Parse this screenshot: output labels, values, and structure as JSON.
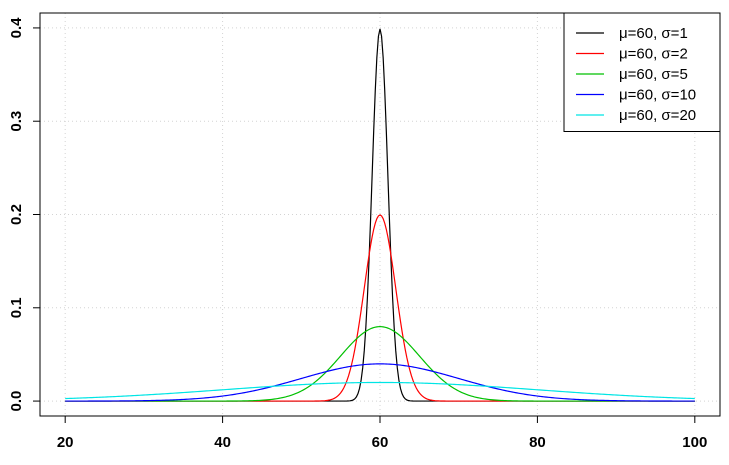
{
  "chart_data": {
    "type": "line",
    "title": "",
    "xlabel": "",
    "ylabel": "",
    "xlim": [
      20,
      100
    ],
    "ylim": [
      0,
      0.4
    ],
    "grid": true,
    "legend_position": "top-right",
    "x_ticks": [
      "20",
      "40",
      "60",
      "80",
      "100"
    ],
    "y_ticks": [
      "0.0",
      "0.1",
      "0.2",
      "0.3",
      "0.4"
    ],
    "series": [
      {
        "name": "μ=60, σ=1",
        "mu": 60,
        "sigma": 1,
        "color": "#000000",
        "x": [
          57,
          58,
          59,
          60,
          61,
          62,
          63
        ],
        "y": [
          0.0044,
          0.054,
          0.242,
          0.399,
          0.242,
          0.054,
          0.0044
        ]
      },
      {
        "name": "μ=60, σ=2",
        "mu": 60,
        "sigma": 2,
        "color": "#ff0000",
        "x": [
          54,
          56,
          58,
          60,
          62,
          64,
          66
        ],
        "y": [
          0.0022,
          0.027,
          0.121,
          0.199,
          0.121,
          0.027,
          0.0022
        ]
      },
      {
        "name": "μ=60, σ=5",
        "mu": 60,
        "sigma": 5,
        "color": "#00c000",
        "x": [
          45,
          50,
          55,
          60,
          65,
          70,
          75
        ],
        "y": [
          0.0009,
          0.0108,
          0.0484,
          0.0798,
          0.0484,
          0.0108,
          0.0009
        ]
      },
      {
        "name": "μ=60, σ=10",
        "mu": 60,
        "sigma": 10,
        "color": "#0000ff",
        "x": [
          30,
          40,
          50,
          60,
          70,
          80,
          90
        ],
        "y": [
          0.0004,
          0.0054,
          0.0242,
          0.0399,
          0.0242,
          0.0054,
          0.0004
        ]
      },
      {
        "name": "μ=60, σ=20",
        "mu": 60,
        "sigma": 20,
        "color": "#00e5e5",
        "x": [
          20,
          40,
          60,
          80,
          100
        ],
        "y": [
          0.0027,
          0.0121,
          0.0199,
          0.0121,
          0.0027
        ]
      }
    ]
  }
}
